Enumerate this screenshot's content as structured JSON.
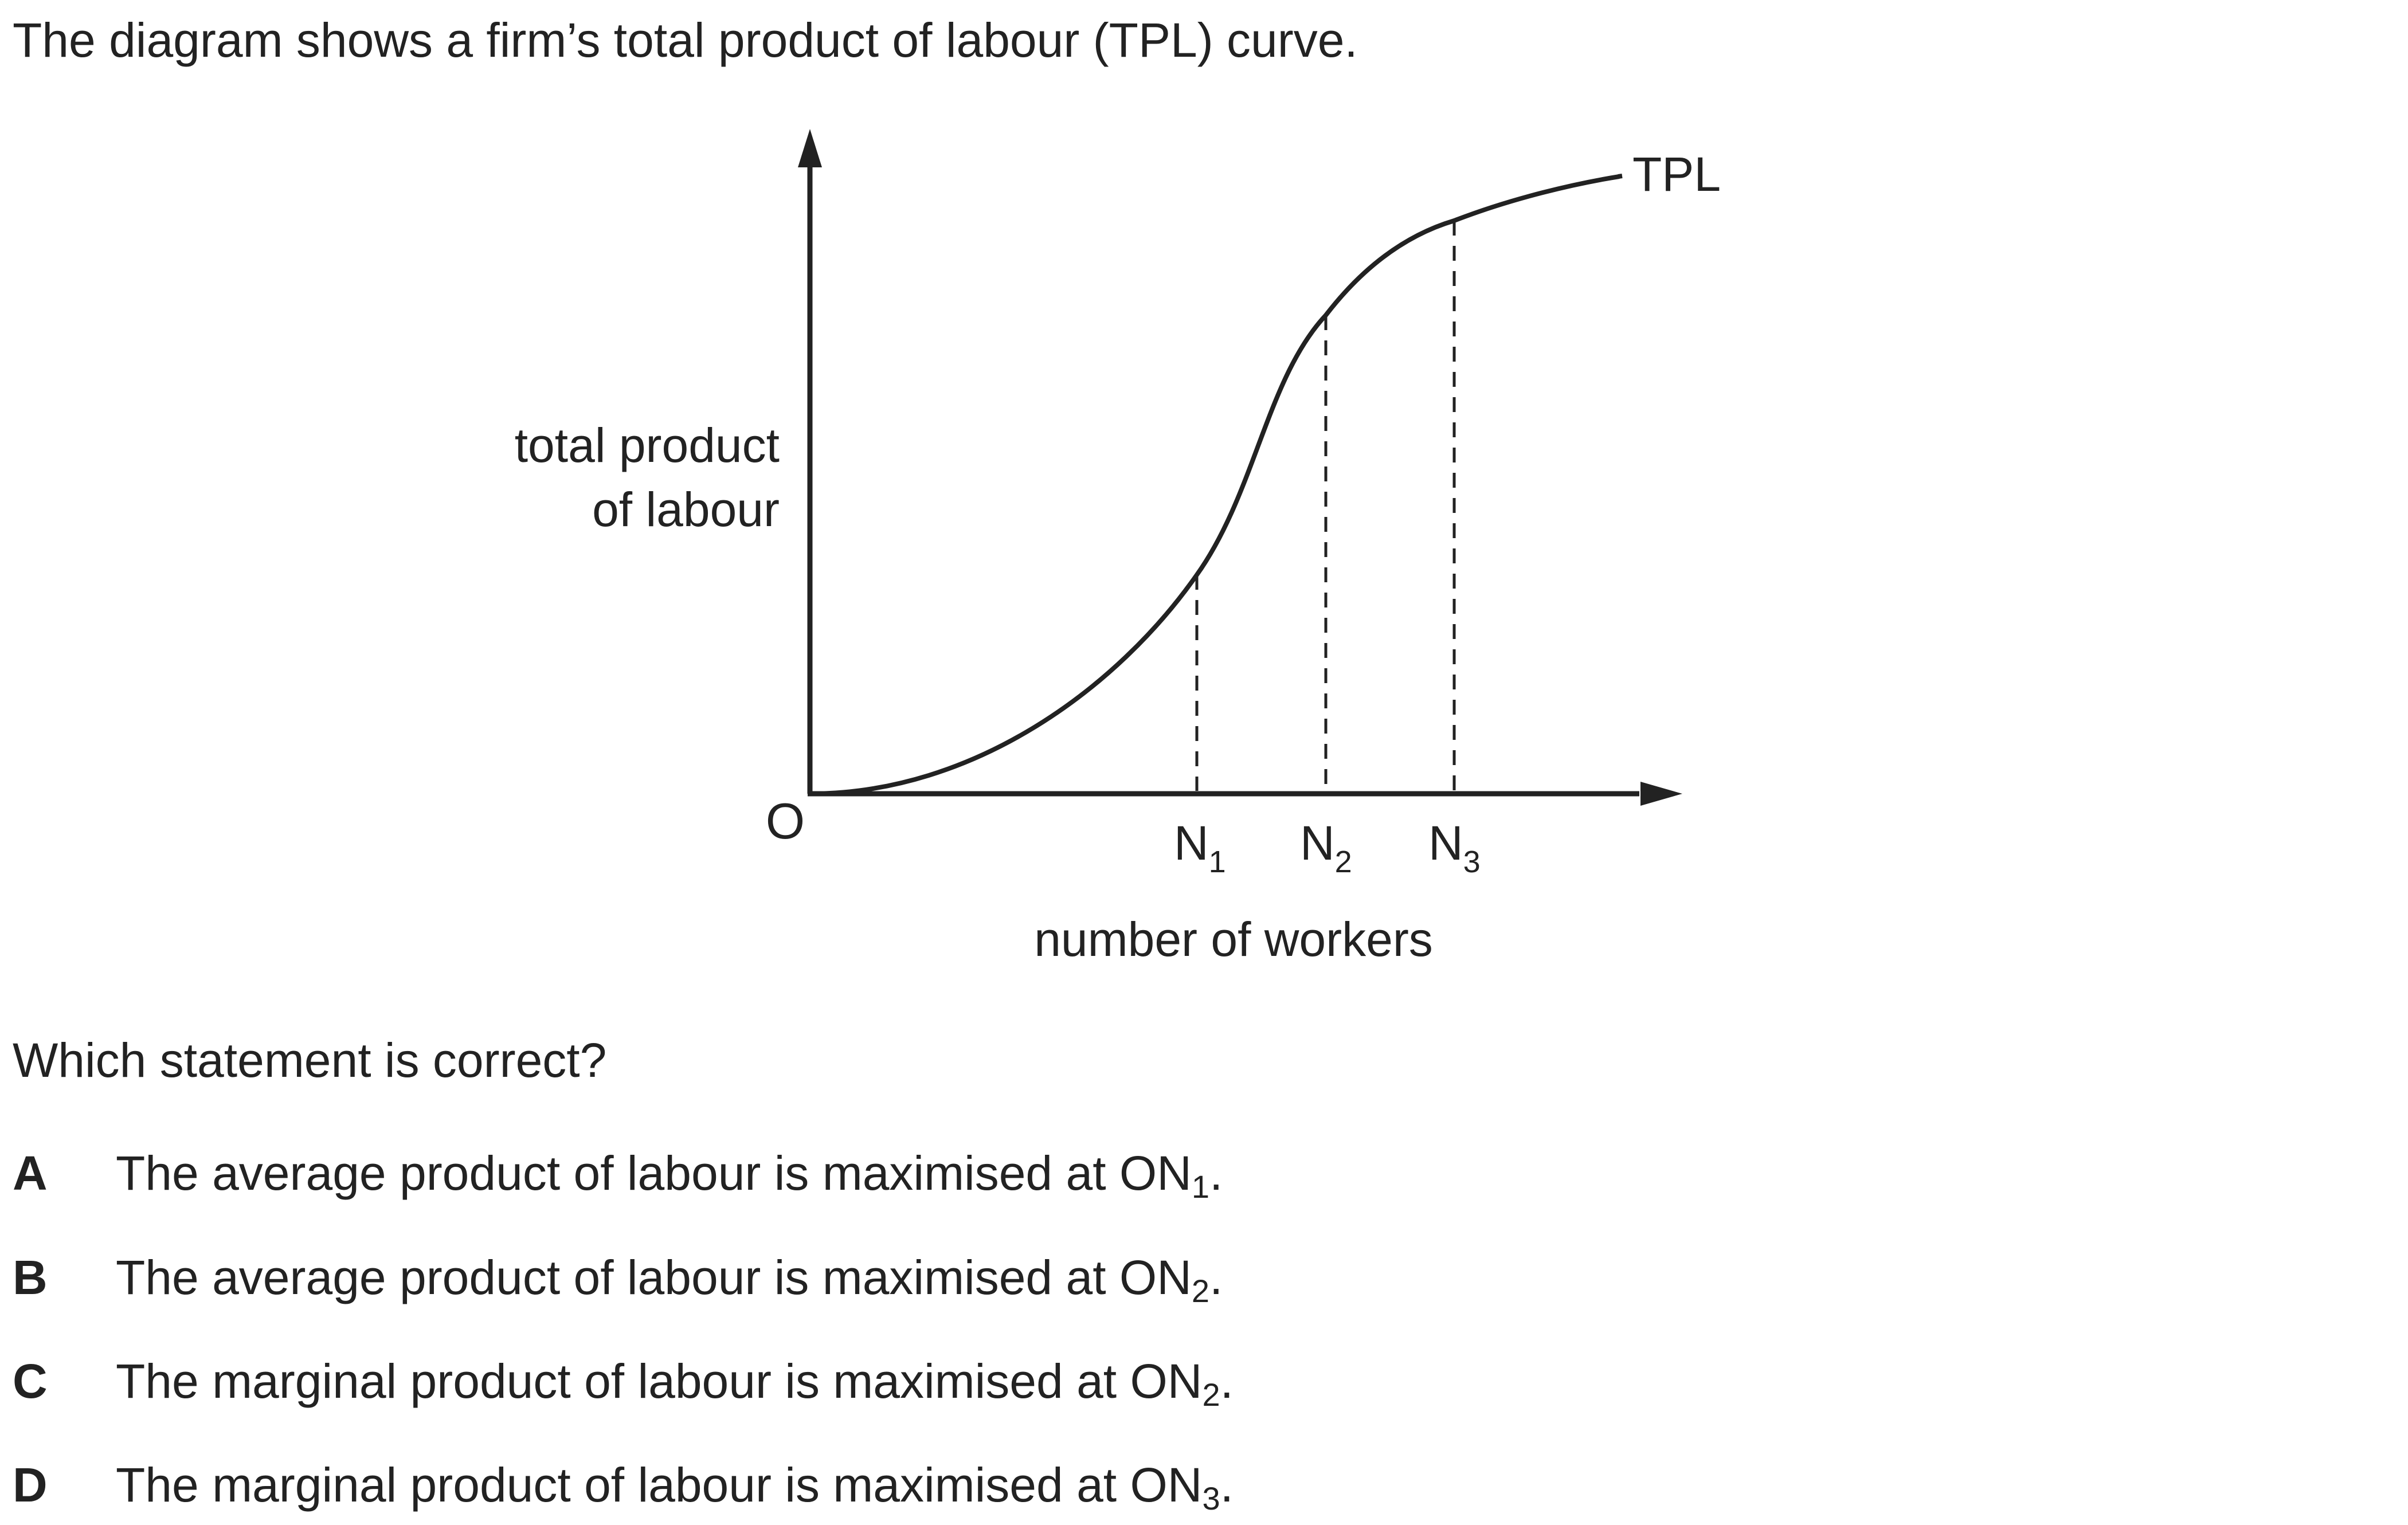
{
  "intro": "The diagram shows a firm’s total product of labour (TPL) curve.",
  "diagram": {
    "y_axis_label_line1": "total product",
    "y_axis_label_line2": "of labour",
    "origin_label": "O",
    "curve_label": "TPL",
    "x_axis_label": "number of workers",
    "points": [
      {
        "base": "N",
        "sub": "1"
      },
      {
        "base": "N",
        "sub": "2"
      },
      {
        "base": "N",
        "sub": "3"
      }
    ]
  },
  "question": "Which statement is correct?",
  "options": [
    {
      "letter": "A",
      "text": "The average product of labour is maximised at ON",
      "sub": "1",
      "end": "."
    },
    {
      "letter": "B",
      "text": "The average product of labour is maximised at ON",
      "sub": "2",
      "end": "."
    },
    {
      "letter": "C",
      "text": "The marginal product of labour is maximised at ON",
      "sub": "2",
      "end": "."
    },
    {
      "letter": "D",
      "text": "The marginal product of labour is maximised at ON",
      "sub": "3",
      "end": "."
    }
  ]
}
